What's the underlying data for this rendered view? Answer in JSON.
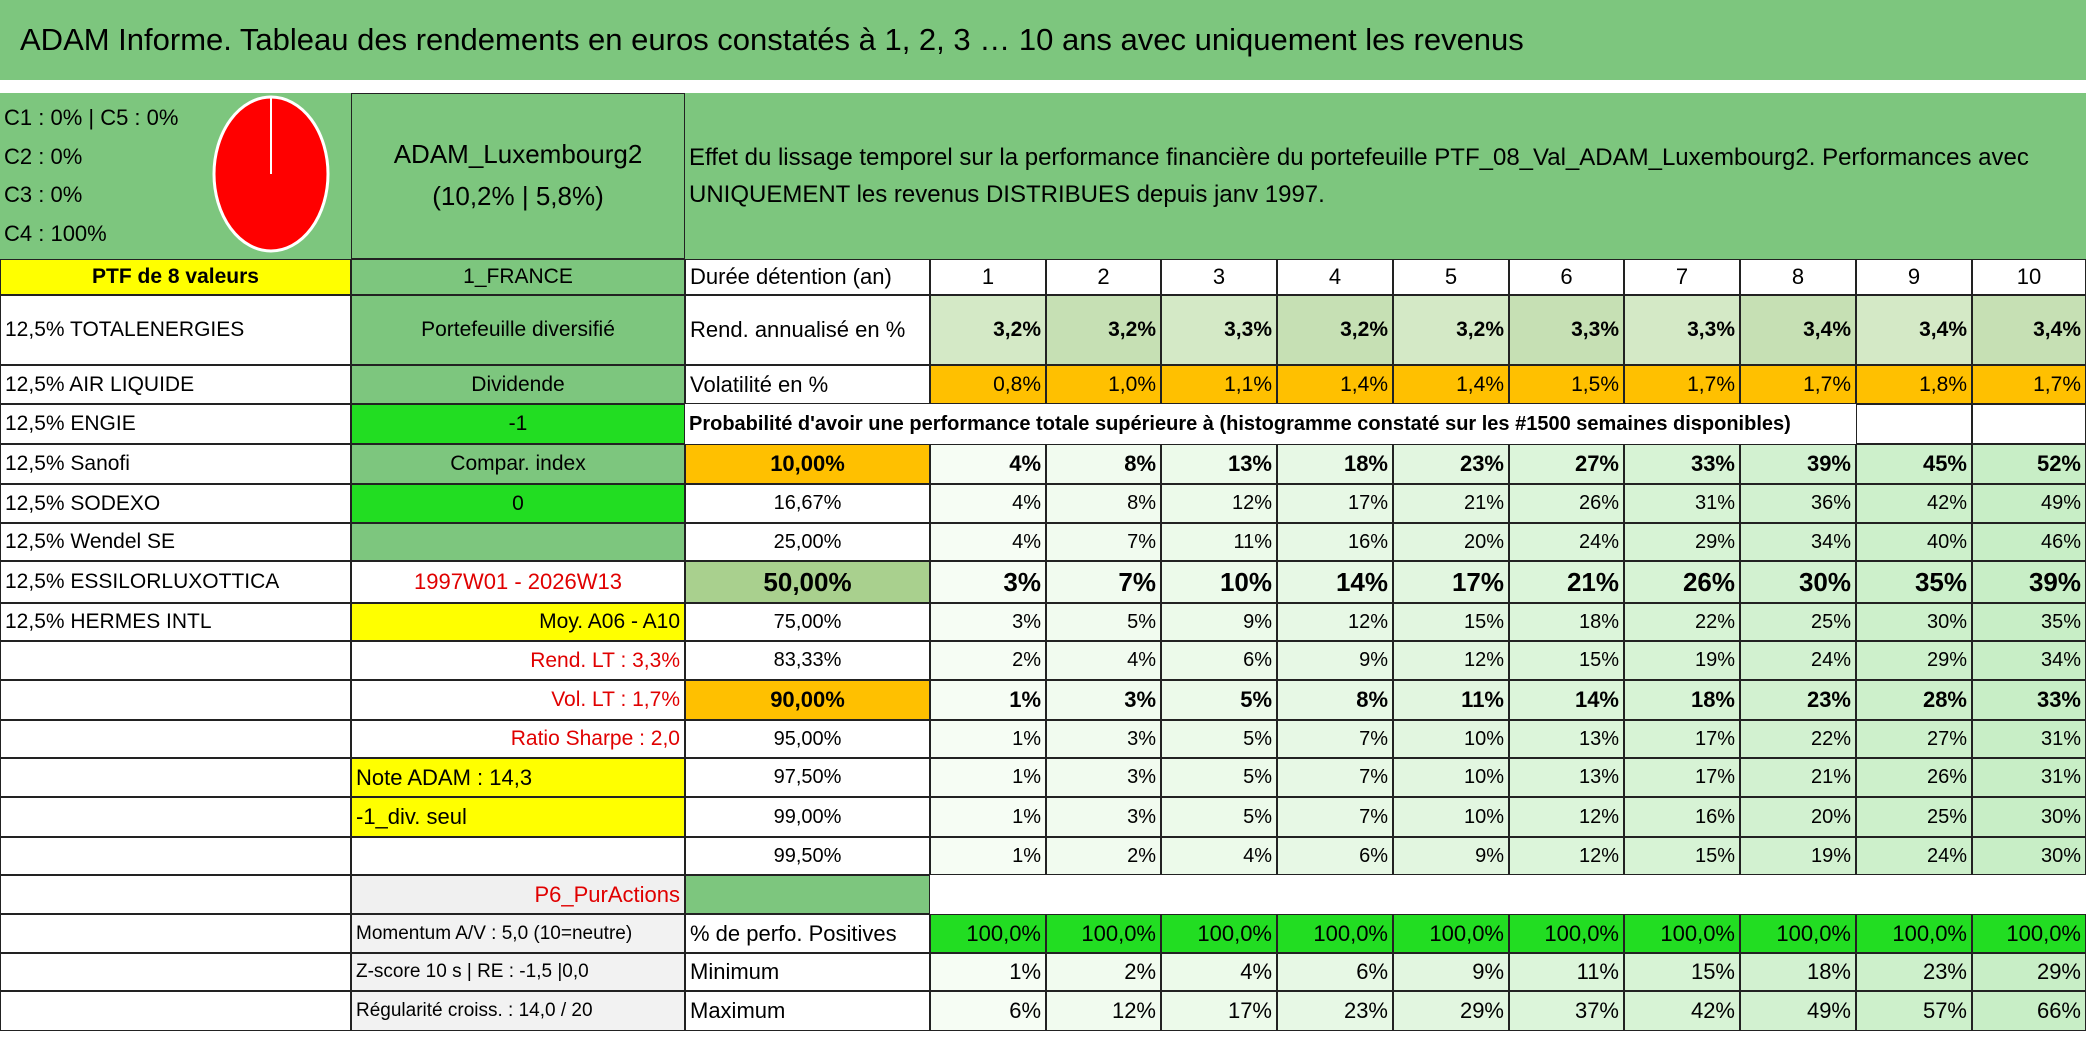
{
  "title": "ADAM Informe. Tableau des rendements en euros constatés à 1, 2, 3 … 10 ans avec uniquement les revenus",
  "allocation": [
    "C1 : 0% | C5 : 0%",
    "C2 : 0%",
    "C3 : 0%",
    "C4 : 100%"
  ],
  "portfolio": {
    "name": "ADAM_Luxembourg2",
    "summary": "(10,2% | 5,8%)"
  },
  "description": "Effet du lissage temporel sur la performance financière du portefeuille PTF_08_Val_ADAM_Luxembourg2. Performances avec UNIQUEMENT les revenus DISTRIBUES depuis janv 1997.",
  "holdings": {
    "header": "PTF de 8 valeurs",
    "items": [
      "12,5% TOTALENERGIES",
      "12,5% AIR LIQUIDE",
      "12,5% ENGIE",
      "12,5% Sanofi",
      "12,5% SODEXO",
      "12,5% Wendel SE",
      "12,5% ESSILORLUXOTTICA",
      "12,5% HERMES INTL"
    ]
  },
  "info": {
    "country": "1_FRANCE",
    "kind": "Portefeuille diversifié",
    "mode": "Dividende",
    "mode_value": "-1",
    "index": "Compar. index",
    "index_value": "0",
    "period": "1997W01 - 2026W13",
    "average": "Moy. A06 - A10",
    "return_lt": "Rend. LT : 3,3%",
    "vol_lt": "Vol. LT : 1,7%",
    "sharpe": "Ratio Sharpe : 2,0",
    "note": "Note ADAM : 14,3",
    "dividend_only": "-1_div. seul",
    "category": "P6_PurActions",
    "momentum": "Momentum A/V : 5,0 (10=neutre)",
    "zscore": "Z-score 10 s | RE : -1,5 |0,0",
    "regularity": "Régularité croiss. : 14,0 / 20"
  },
  "table": {
    "header_label": "Durée détention (an)",
    "years": [
      1,
      2,
      3,
      4,
      5,
      6,
      7,
      8,
      9,
      10
    ],
    "returns": {
      "label": "Rend. annualisé en %",
      "values": [
        "3,2%",
        "3,2%",
        "3,3%",
        "3,2%",
        "3,2%",
        "3,3%",
        "3,3%",
        "3,4%",
        "3,4%",
        "3,4%"
      ]
    },
    "volatility": {
      "label": "Volatilité en %",
      "values": [
        "0,8%",
        "1,0%",
        "1,1%",
        "1,4%",
        "1,4%",
        "1,5%",
        "1,7%",
        "1,7%",
        "1,8%",
        "1,7%"
      ]
    },
    "probability_title": "Probabilité d'avoir une performance totale supérieure à (histogramme constaté sur les #1500 semaines disponibles)",
    "probability_rows": [
      {
        "threshold": "10,00%",
        "values": [
          "4%",
          "8%",
          "13%",
          "18%",
          "23%",
          "27%",
          "33%",
          "39%",
          "45%",
          "52%"
        ]
      },
      {
        "threshold": "16,67%",
        "values": [
          "4%",
          "8%",
          "12%",
          "17%",
          "21%",
          "26%",
          "31%",
          "36%",
          "42%",
          "49%"
        ]
      },
      {
        "threshold": "25,00%",
        "values": [
          "4%",
          "7%",
          "11%",
          "16%",
          "20%",
          "24%",
          "29%",
          "34%",
          "40%",
          "46%"
        ]
      },
      {
        "threshold": "50,00%",
        "values": [
          "3%",
          "7%",
          "10%",
          "14%",
          "17%",
          "21%",
          "26%",
          "30%",
          "35%",
          "39%"
        ]
      },
      {
        "threshold": "75,00%",
        "values": [
          "3%",
          "5%",
          "9%",
          "12%",
          "15%",
          "18%",
          "22%",
          "25%",
          "30%",
          "35%"
        ]
      },
      {
        "threshold": "83,33%",
        "values": [
          "2%",
          "4%",
          "6%",
          "9%",
          "12%",
          "15%",
          "19%",
          "24%",
          "29%",
          "34%"
        ]
      },
      {
        "threshold": "90,00%",
        "values": [
          "1%",
          "3%",
          "5%",
          "8%",
          "11%",
          "14%",
          "18%",
          "23%",
          "28%",
          "33%"
        ]
      },
      {
        "threshold": "95,00%",
        "values": [
          "1%",
          "3%",
          "5%",
          "7%",
          "10%",
          "13%",
          "17%",
          "22%",
          "27%",
          "31%"
        ]
      },
      {
        "threshold": "97,50%",
        "values": [
          "1%",
          "3%",
          "5%",
          "7%",
          "10%",
          "13%",
          "17%",
          "21%",
          "26%",
          "31%"
        ]
      },
      {
        "threshold": "99,00%",
        "values": [
          "1%",
          "3%",
          "5%",
          "7%",
          "10%",
          "12%",
          "16%",
          "20%",
          "25%",
          "30%"
        ]
      },
      {
        "threshold": "99,50%",
        "values": [
          "1%",
          "2%",
          "4%",
          "6%",
          "9%",
          "12%",
          "15%",
          "19%",
          "24%",
          "30%"
        ]
      }
    ],
    "stats_rows": [
      {
        "label": "% de perfo. Positives",
        "values": [
          "100,0%",
          "100,0%",
          "100,0%",
          "100,0%",
          "100,0%",
          "100,0%",
          "100,0%",
          "100,0%",
          "100,0%",
          "100,0%"
        ]
      },
      {
        "label": "Minimum",
        "values": [
          "1%",
          "2%",
          "4%",
          "6%",
          "9%",
          "11%",
          "15%",
          "18%",
          "23%",
          "29%"
        ]
      },
      {
        "label": "Maximum",
        "values": [
          "6%",
          "12%",
          "17%",
          "23%",
          "29%",
          "37%",
          "42%",
          "49%",
          "57%",
          "66%"
        ]
      }
    ]
  }
}
